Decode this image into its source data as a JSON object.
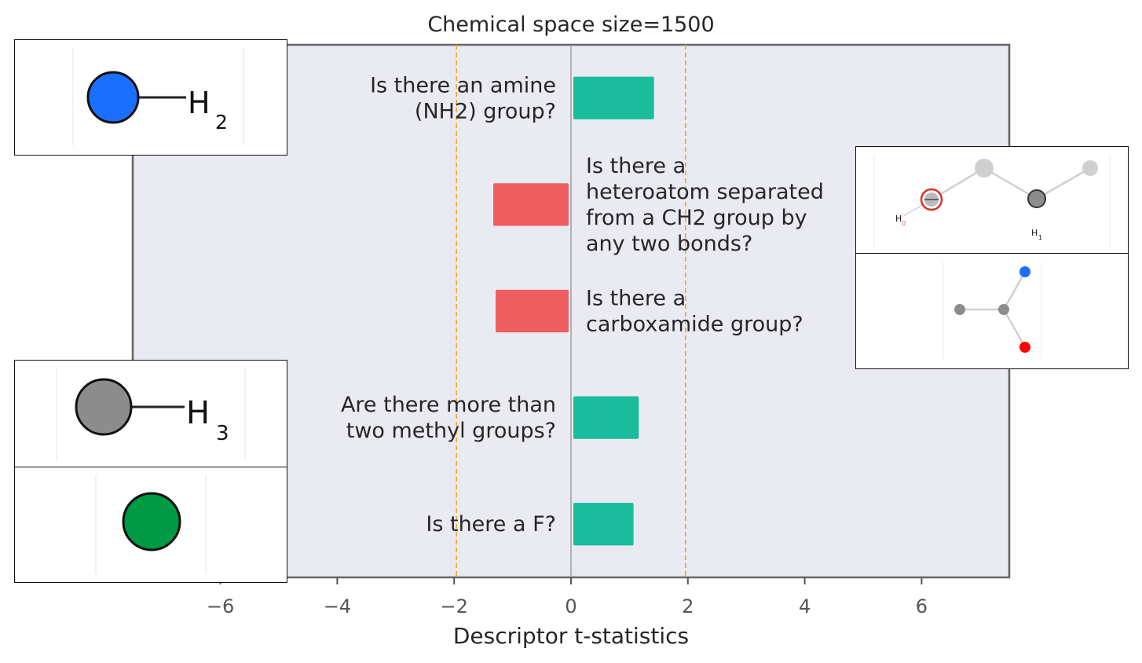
{
  "chart_data": {
    "type": "bar",
    "orientation": "horizontal",
    "title": "Chemical space size=1500",
    "xlabel": "Descriptor t-statistics",
    "xlim": [
      -7.5,
      7.5
    ],
    "xticks": [
      -6,
      -4,
      -2,
      0,
      2,
      4,
      6
    ],
    "xtick_labels": [
      "−6",
      "−4",
      "−2",
      "0",
      "2",
      "4",
      "6"
    ],
    "significance_lines": [
      -1.96,
      1.96
    ],
    "categories": [
      [
        "Is there an amine",
        "(NH2) group?"
      ],
      [
        "Is there a",
        "heteroatom separated",
        "from a CH2 group by",
        "any two bonds?"
      ],
      [
        "Is there a",
        "carboxamide group?"
      ],
      [
        "Are there more than",
        "two methyl groups?"
      ],
      [
        "Is there a F?"
      ]
    ],
    "values": [
      1.42,
      -1.33,
      -1.29,
      1.16,
      1.07
    ],
    "grid": false,
    "colors": {
      "positive": "#1abc9c",
      "negative": "#ef5f5f",
      "plot_background": "#e9eaf2",
      "threshold_line": "#f5a623",
      "zero_line": "#8c8c8c"
    }
  },
  "insets": {
    "amine": {
      "atom_label": "H",
      "atom_sub": "2",
      "atom_color": "#1a6fff"
    },
    "methyl": {
      "atom_label": "H",
      "atom_sub": "3",
      "atom_color": "#8c8c8c"
    },
    "fluorine": {
      "atom_color": "#009944"
    },
    "heteroatom": {
      "label_h": "H",
      "label_h_sub": "0",
      "label_h1": "H",
      "label_h1_sub": "1"
    },
    "carboxamide": {
      "colors": [
        "#8c8c8c",
        "#1a6fff",
        "#ff0000"
      ]
    }
  }
}
